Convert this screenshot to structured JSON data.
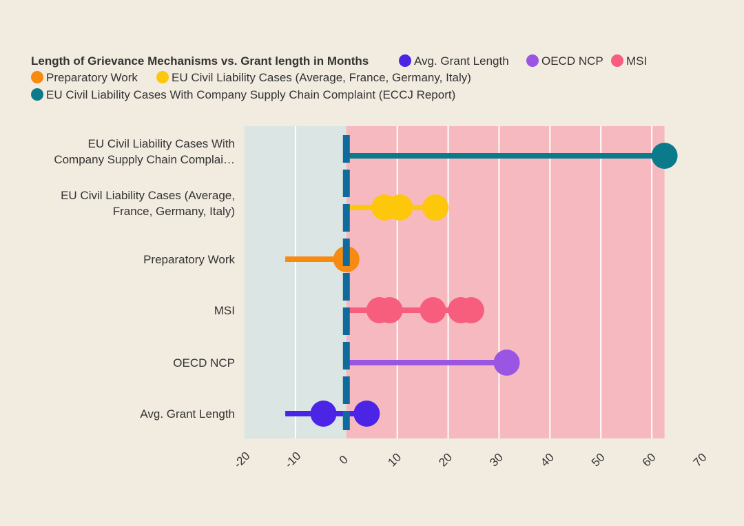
{
  "colors": {
    "background": "#f1ebe0",
    "negative_band": "#dbe5e4",
    "positive_band": "#f5b9bf",
    "zero_line": "#0f6b9c",
    "gridline": "#ffffff",
    "text": "#333333"
  },
  "chart_data": {
    "type": "dot-range",
    "title": "Length of Grievance Mechanisms vs. Grant length in Months",
    "xlabel": "",
    "ylabel": "",
    "xlim": [
      -20,
      70
    ],
    "xticks": [
      -20,
      -10,
      0,
      10,
      20,
      30,
      40,
      50,
      60,
      70
    ],
    "grid": true,
    "legend_position": "top",
    "negative_band_range": [
      -20,
      0
    ],
    "positive_band_range": [
      0,
      62.5
    ],
    "series": [
      {
        "name": "Avg. Grant Length",
        "label": "Avg. Grant Length",
        "color": "#4b24e6",
        "range": [
          -12,
          4
        ],
        "points": [
          -4.5,
          4
        ]
      },
      {
        "name": "OECD NCP",
        "label": "OECD NCP",
        "color": "#9a55e3",
        "range": [
          0,
          31.5
        ],
        "points": [
          31.5
        ]
      },
      {
        "name": "MSI",
        "label": "MSI",
        "color": "#f75d7d",
        "range": [
          0,
          24.5
        ],
        "points": [
          6.5,
          8.5,
          17,
          22.5,
          24.5
        ]
      },
      {
        "name": "Preparatory Work",
        "label": "Preparatory Work",
        "color": "#f78a0f",
        "range": [
          -12,
          0
        ],
        "points": [
          0
        ]
      },
      {
        "name": "EU Civil Liability Cases (Average, France, Germany, Italy)",
        "label": "EU Civil Liability Cases (Average, France, Germany, Italy)",
        "color": "#fdc70c",
        "range": [
          0,
          17.5
        ],
        "points": [
          7.5,
          10.5,
          17.5
        ]
      },
      {
        "name": "EU Civil Liability Cases With Company Supply Chain Complaint (ECCJ Report)",
        "label": "EU Civil Liability Cases With Company Supply Chain Complai…",
        "color": "#0b7b8b",
        "range": [
          0,
          62.5
        ],
        "points": [
          62.5
        ]
      }
    ]
  }
}
